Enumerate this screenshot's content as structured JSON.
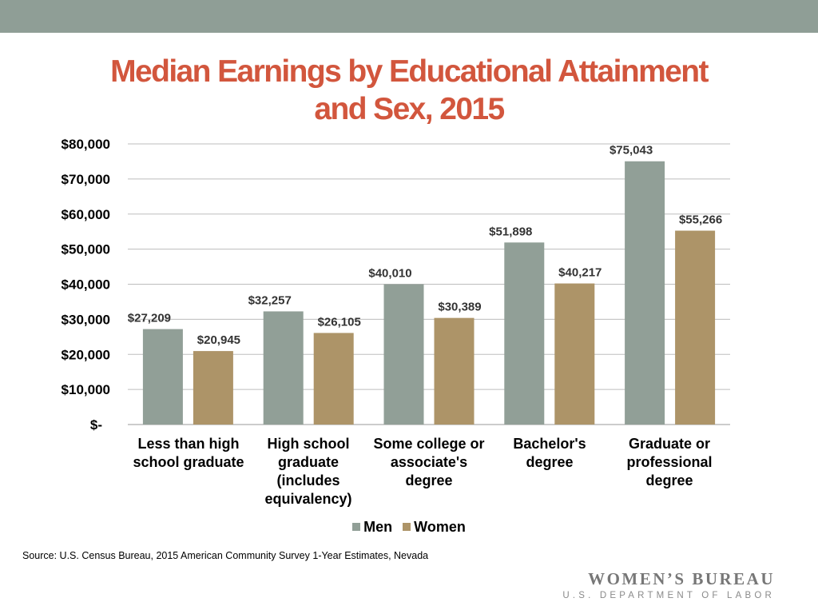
{
  "header": {
    "title_line1": "Median Earnings by Educational Attainment",
    "title_line2": "and Sex, 2015"
  },
  "source": "Source: U.S. Census Bureau, 2015 American Community Survey 1-Year Estimates, Nevada",
  "logo": {
    "line1": "WOMEN’S BUREAU",
    "line2": "U.S. DEPARTMENT OF LABOR"
  },
  "colors": {
    "men": "#919f97",
    "women": "#ad9468",
    "title": "#d2563d",
    "band": "#8f9e96"
  },
  "chart_data": {
    "type": "bar",
    "title": "Median Earnings by Educational Attainment and Sex, 2015",
    "categories": [
      "Less than high school graduate",
      "High school graduate (includes equivalency)",
      "Some college or associate's degree",
      "Bachelor's degree",
      "Graduate or professional degree"
    ],
    "series": [
      {
        "name": "Men",
        "values": [
          27209,
          32257,
          40010,
          51898,
          75043
        ],
        "labels": [
          "$27,209",
          "$32,257",
          "$40,010",
          "$51,898",
          "$75,043"
        ]
      },
      {
        "name": "Women",
        "values": [
          20945,
          26105,
          30389,
          40217,
          55266
        ],
        "labels": [
          "$20,945",
          "$26,105",
          "$30,389",
          "$40,217",
          "$55,266"
        ]
      }
    ],
    "ylim": [
      0,
      80000
    ],
    "yticks": [
      0,
      10000,
      20000,
      30000,
      40000,
      50000,
      60000,
      70000,
      80000
    ],
    "ytick_labels": [
      "$-",
      "$10,000",
      "$20,000",
      "$30,000",
      "$40,000",
      "$50,000",
      "$60,000",
      "$70,000",
      "$80,000"
    ],
    "grid": true,
    "legend": "bottom"
  }
}
